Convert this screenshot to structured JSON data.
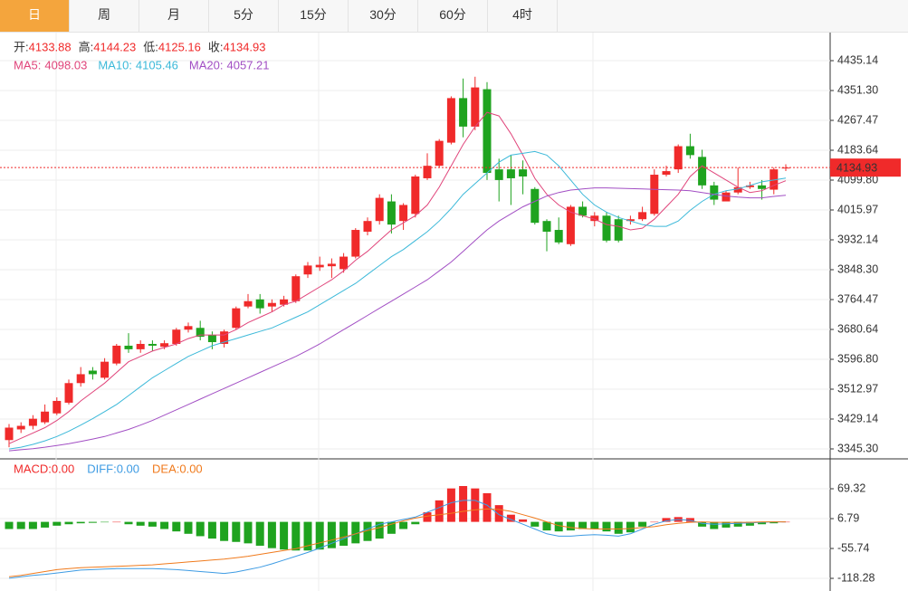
{
  "tabs": [
    "日",
    "周",
    "月",
    "5分",
    "15分",
    "30分",
    "60分",
    "4时"
  ],
  "chart_data": [
    {
      "type": "candlestick",
      "ohlc_labels": [
        "开:",
        "高:",
        "低:",
        "收:"
      ],
      "up_color": "#f02a2a",
      "down_color": "#1fa31f",
      "open": [
        3370,
        3400,
        3410,
        3420,
        3445,
        3475,
        3530,
        3565,
        3545,
        3585,
        3635,
        3625,
        3640,
        3632,
        3640,
        3680,
        3685,
        3665,
        3640,
        3685,
        3745,
        3765,
        3745,
        3750,
        3760,
        3835,
        3855,
        3858,
        3850,
        3885,
        3955,
        3985,
        4040,
        3985,
        4005,
        4105,
        4140,
        4205,
        4330,
        4250,
        4355,
        4130,
        4130,
        4130,
        4075,
        3985,
        3960,
        3920,
        4025,
        3985,
        4000,
        3990,
        3985,
        3990,
        4005,
        4115,
        4130,
        4195,
        4165,
        4085,
        4040,
        4065,
        4080,
        4085,
        4073,
        4133.88
      ],
      "high": [
        3415,
        3420,
        3440,
        3470,
        3490,
        3540,
        3575,
        3575,
        3600,
        3640,
        3670,
        3650,
        3650,
        3650,
        3685,
        3700,
        3705,
        3675,
        3680,
        3745,
        3780,
        3780,
        3765,
        3775,
        3835,
        3870,
        3885,
        3880,
        3895,
        3965,
        3995,
        4060,
        4060,
        4035,
        4115,
        4175,
        4215,
        4335,
        4385,
        4390,
        4375,
        4160,
        4170,
        4155,
        4080,
        3990,
        3995,
        4030,
        4040,
        4010,
        4010,
        4000,
        4000,
        4025,
        4130,
        4140,
        4200,
        4230,
        4185,
        4095,
        4070,
        4135,
        4095,
        4100,
        4135,
        4144.23
      ],
      "low": [
        3350,
        3390,
        3400,
        3415,
        3440,
        3470,
        3520,
        3540,
        3540,
        3580,
        3615,
        3615,
        3620,
        3625,
        3635,
        3672,
        3650,
        3625,
        3630,
        3680,
        3740,
        3725,
        3730,
        3745,
        3755,
        3825,
        3845,
        3825,
        3840,
        3880,
        3945,
        3975,
        3950,
        3960,
        3995,
        4100,
        4135,
        4200,
        4220,
        4240,
        4100,
        4040,
        4030,
        4060,
        3975,
        3900,
        3920,
        3915,
        3995,
        3970,
        3925,
        3925,
        3975,
        3985,
        4000,
        4110,
        4120,
        4160,
        4075,
        4030,
        4040,
        4060,
        4075,
        4045,
        4060,
        4125.16
      ],
      "close": [
        3405,
        3410,
        3430,
        3450,
        3480,
        3530,
        3555,
        3555,
        3590,
        3635,
        3625,
        3640,
        3635,
        3642,
        3680,
        3690,
        3660,
        3645,
        3675,
        3740,
        3760,
        3740,
        3755,
        3765,
        3830,
        3860,
        3862,
        3865,
        3885,
        3960,
        3985,
        4050,
        3975,
        4030,
        4110,
        4140,
        4210,
        4330,
        4250,
        4360,
        4120,
        4100,
        4105,
        4110,
        3980,
        3955,
        3925,
        4025,
        4000,
        4000,
        3930,
        3930,
        3990,
        4010,
        4115,
        4125,
        4195,
        4170,
        4085,
        4045,
        4065,
        4080,
        4085,
        4075,
        4130,
        4134.93
      ],
      "series": [
        {
          "name": "MA5:",
          "color": "#e0457b",
          "values": [
            3360,
            3375,
            3390,
            3405,
            3425,
            3450,
            3480,
            3505,
            3530,
            3560,
            3590,
            3605,
            3620,
            3630,
            3640,
            3655,
            3665,
            3665,
            3665,
            3680,
            3700,
            3715,
            3730,
            3750,
            3760,
            3780,
            3800,
            3820,
            3845,
            3875,
            3900,
            3930,
            3960,
            3980,
            4000,
            4030,
            4080,
            4140,
            4200,
            4250,
            4290,
            4280,
            4230,
            4170,
            4105,
            4060,
            4030,
            4010,
            4000,
            3990,
            3975,
            3970,
            3960,
            3965,
            3990,
            4025,
            4060,
            4110,
            4140,
            4120,
            4100,
            4080,
            4065,
            4070,
            4085,
            4098.03
          ]
        },
        {
          "name": "MA10:",
          "color": "#3cb9d9",
          "values": [
            3345,
            3350,
            3358,
            3368,
            3380,
            3395,
            3412,
            3430,
            3450,
            3470,
            3495,
            3520,
            3545,
            3565,
            3585,
            3605,
            3620,
            3635,
            3645,
            3655,
            3665,
            3675,
            3685,
            3700,
            3715,
            3730,
            3750,
            3770,
            3790,
            3810,
            3835,
            3860,
            3885,
            3905,
            3930,
            3955,
            3985,
            4020,
            4060,
            4090,
            4120,
            4150,
            4170,
            4175,
            4180,
            4170,
            4140,
            4100,
            4060,
            4030,
            4010,
            3995,
            3985,
            3975,
            3970,
            3970,
            3985,
            4015,
            4040,
            4060,
            4070,
            4075,
            4085,
            4095,
            4100,
            4105.46
          ]
        },
        {
          "name": "MA20:",
          "color": "#a24fc4",
          "values": [
            3340,
            3343,
            3346,
            3350,
            3355,
            3360,
            3366,
            3373,
            3380,
            3390,
            3400,
            3412,
            3425,
            3440,
            3455,
            3470,
            3485,
            3500,
            3515,
            3530,
            3545,
            3560,
            3575,
            3590,
            3605,
            3622,
            3640,
            3660,
            3680,
            3700,
            3720,
            3740,
            3760,
            3780,
            3800,
            3820,
            3845,
            3870,
            3900,
            3930,
            3960,
            3985,
            4005,
            4025,
            4040,
            4055,
            4065,
            4072,
            4075,
            4078,
            4078,
            4077,
            4076,
            4075,
            4074,
            4073,
            4072,
            4070,
            4065,
            4060,
            4055,
            4052,
            4050,
            4050,
            4054,
            4057.21
          ]
        }
      ],
      "ylim": [
        3322.4,
        4511.4
      ],
      "yticks": [
        4435.14,
        {
          "value": 4351.3,
          "label": "4351.30"
        },
        4267.47,
        4183.64,
        {
          "value": 4099.8,
          "label": "4099.80"
        },
        4015.97,
        3932.14,
        {
          "value": 3848.3,
          "label": "3848.30"
        },
        3764.47,
        3680.64,
        {
          "value": 3596.8,
          "label": "3596.80"
        },
        3512.97,
        3429.14,
        {
          "value": 3345.3,
          "label": "3345.30"
        }
      ],
      "grid": true,
      "price_color": "#f02a2a"
    },
    {
      "type": "macd",
      "series": [
        {
          "name": "MACD:",
          "color": "#f02a2a",
          "down_color": "#1fa31f",
          "current": {
            "value": 0,
            "label": "0.00"
          },
          "values": [
            -15,
            -15,
            -15,
            -12,
            -8,
            -5,
            -3,
            -2,
            -1,
            0,
            -5,
            -8,
            -10,
            -15,
            -20,
            -25,
            -30,
            -35,
            -40,
            -42,
            -45,
            -50,
            -55,
            -58,
            -60,
            -60,
            -58,
            -55,
            -50,
            -45,
            -40,
            -35,
            -25,
            -15,
            -5,
            20,
            45,
            70,
            75,
            70,
            60,
            35,
            15,
            5,
            -10,
            -18,
            -20,
            -18,
            -15,
            -15,
            -20,
            -25,
            -22,
            -10,
            0,
            8,
            10,
            8,
            -10,
            -15,
            -12,
            -10,
            -8,
            -5,
            -3,
            0
          ]
        },
        {
          "name": "DIFF:",
          "color": "#3d9be3",
          "current": {
            "value": 0,
            "label": "0.00"
          },
          "values": [
            -118,
            -115,
            -112,
            -110,
            -107,
            -104,
            -101,
            -100,
            -99,
            -98,
            -98,
            -98,
            -98,
            -99,
            -100,
            -102,
            -104,
            -106,
            -108,
            -105,
            -100,
            -95,
            -88,
            -80,
            -72,
            -64,
            -55,
            -45,
            -35,
            -25,
            -15,
            -5,
            0,
            5,
            10,
            20,
            30,
            40,
            45,
            45,
            35,
            15,
            5,
            -5,
            -15,
            -25,
            -30,
            -30,
            -28,
            -27,
            -28,
            -30,
            -25,
            -15,
            -5,
            2,
            5,
            3,
            -3,
            -5,
            -4,
            -3,
            -2,
            -1,
            0,
            0
          ]
        },
        {
          "name": "DEA:",
          "color": "#f07a1c",
          "current": {
            "value": 0,
            "label": "0.00"
          },
          "values": [
            -115,
            -112,
            -108,
            -104,
            -100,
            -98,
            -96,
            -95,
            -94,
            -93,
            -92,
            -91,
            -90,
            -88,
            -86,
            -84,
            -82,
            -80,
            -78,
            -75,
            -72,
            -68,
            -64,
            -60,
            -56,
            -50,
            -44,
            -38,
            -32,
            -25,
            -18,
            -12,
            -5,
            2,
            8,
            12,
            15,
            18,
            22,
            25,
            27,
            26,
            22,
            15,
            8,
            0,
            -8,
            -12,
            -14,
            -15,
            -15,
            -15,
            -14,
            -12,
            -10,
            -6,
            -3,
            -1,
            0,
            -1,
            -1,
            -1,
            -1,
            0,
            0,
            0
          ]
        }
      ],
      "ylim": [
        -135.3,
        130
      ],
      "yticks": [
        69.32,
        6.79,
        -55.74,
        -118.28
      ],
      "grid": true
    }
  ]
}
